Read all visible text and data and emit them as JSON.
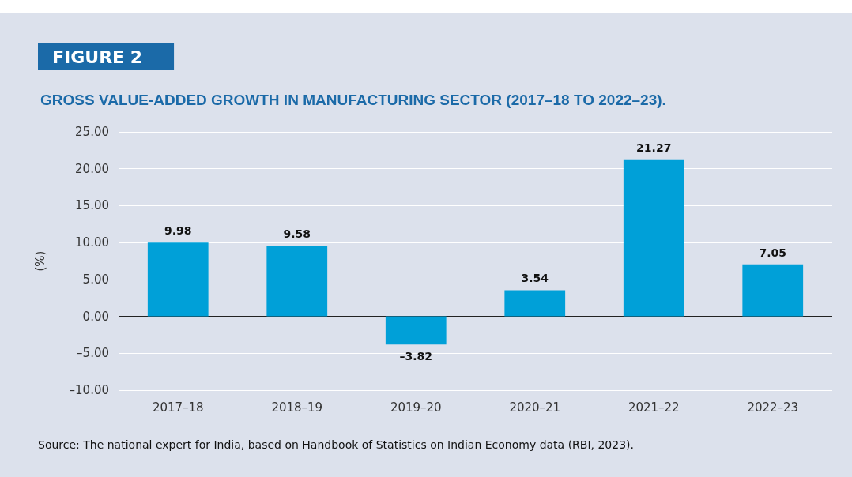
{
  "chart_data": {
    "type": "bar",
    "subtitle": "FIGURE 2",
    "title": "GROSS VALUE-ADDED GROWTH IN MANUFACTURING SECTOR (2017–18 TO 2022–23).",
    "ylabel": "(%)",
    "categories": [
      "2017–18",
      "2018–19",
      "2019–20",
      "2020–21",
      "2021–22",
      "2022–23"
    ],
    "values": [
      9.98,
      9.58,
      -3.82,
      3.54,
      21.27,
      7.05
    ],
    "value_labels": [
      "9.98",
      "9.58",
      "–3.82",
      "3.54",
      "21.27",
      "7.05"
    ],
    "color": "#00a0d8",
    "ylim": [
      -10,
      25
    ],
    "yticks": [
      {
        "value": -10,
        "label": "–10.00"
      },
      {
        "value": -5,
        "label": "–5.00"
      },
      {
        "value": 0,
        "label": "0.00"
      },
      {
        "value": 5,
        "label": "5.00"
      },
      {
        "value": 10,
        "label": "10.00"
      },
      {
        "value": 15,
        "label": "15.00"
      },
      {
        "value": 20,
        "label": "20.00"
      },
      {
        "value": 25,
        "label": "25.00"
      }
    ],
    "grid": "y",
    "annotations": [
      "Source: The national expert for India, based on Handbook of Statistics on Indian Economy data (RBI, 2023)."
    ]
  }
}
